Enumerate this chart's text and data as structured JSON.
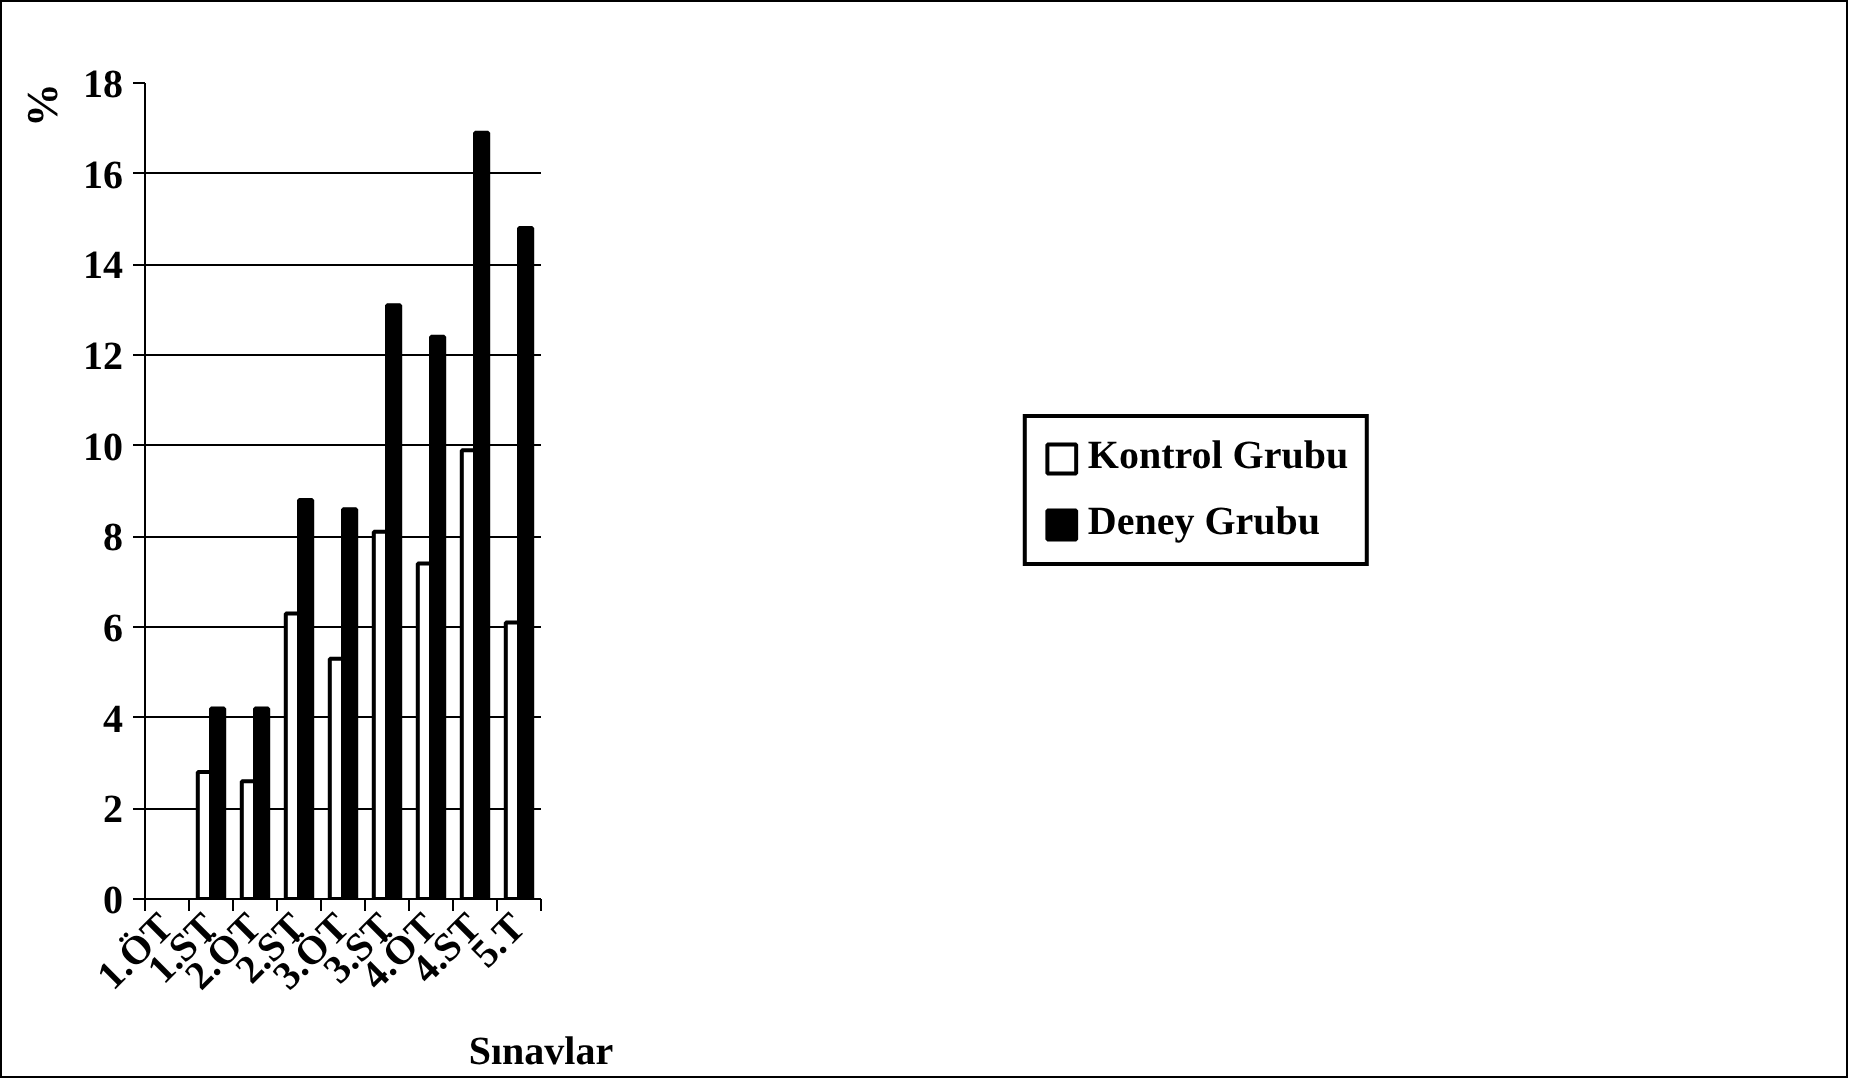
{
  "chart_data": {
    "type": "bar",
    "xlabel": "Sınavlar",
    "ylabel": "%",
    "categories": [
      "1.ÖT",
      "1.ST",
      "2.ÖT",
      "2.ST",
      "3.ÖT",
      "3.ST",
      "4.ÖT",
      "4.ST",
      "5.T"
    ],
    "series": [
      {
        "name": "Kontrol Grubu",
        "color": "#ffffff",
        "values": [
          null,
          2.8,
          2.6,
          6.3,
          5.3,
          8.1,
          7.4,
          9.9,
          6.1
        ]
      },
      {
        "name": "Deney Grubu",
        "color": "#000000",
        "values": [
          null,
          4.2,
          4.2,
          8.8,
          8.6,
          13.1,
          12.4,
          16.9,
          14.8
        ]
      }
    ],
    "ylim": [
      0,
      18
    ],
    "yticks": [
      0,
      2,
      4,
      6,
      8,
      10,
      12,
      14,
      16,
      18
    ],
    "grid": "y",
    "legend": "right"
  }
}
